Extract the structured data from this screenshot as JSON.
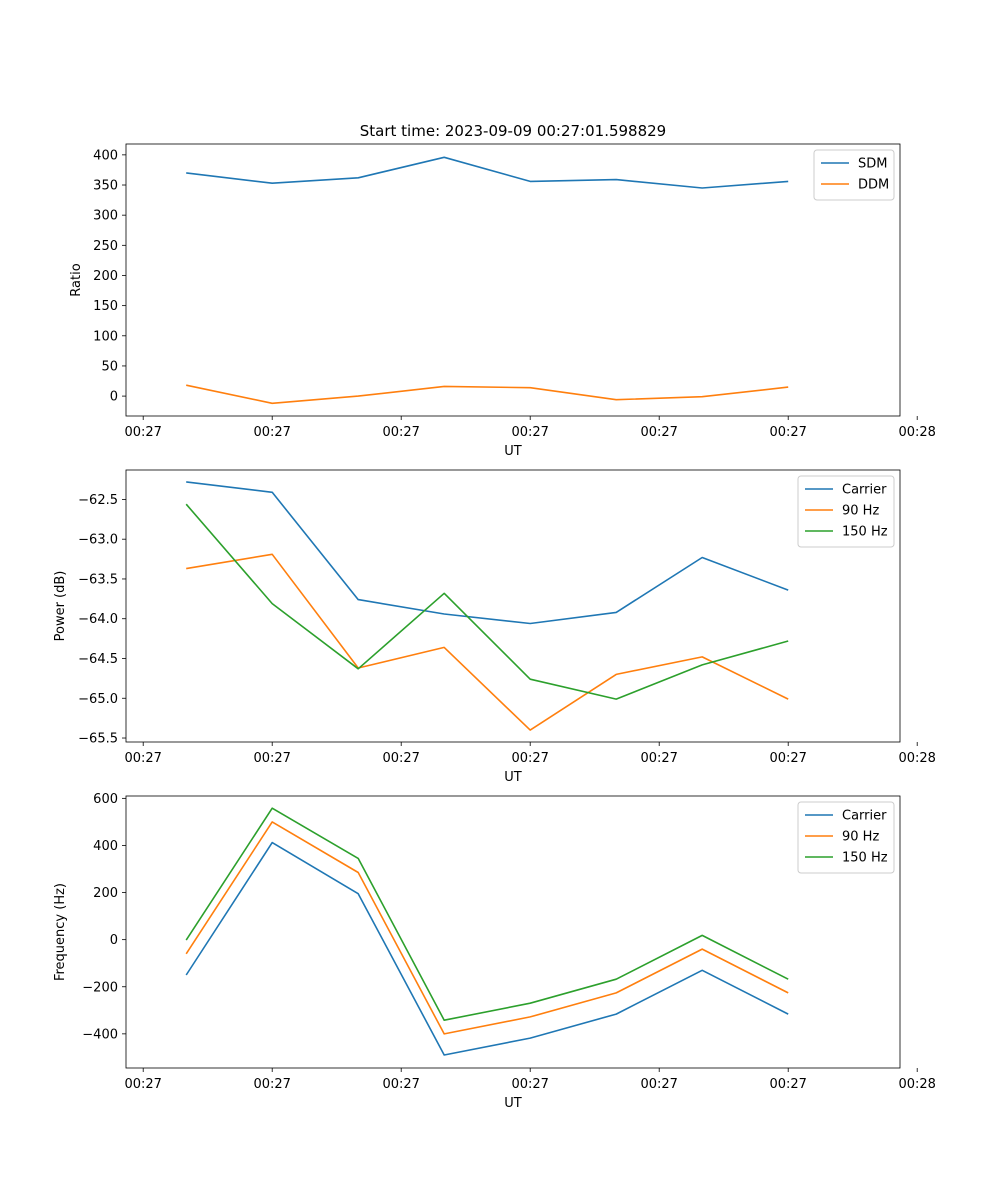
{
  "figure_title": "Start time: 2023-09-09 00:27:01.598829",
  "colors": {
    "blue": "#1f77b4",
    "orange": "#ff7f0e",
    "green": "#2ca02c"
  },
  "chart_data": [
    {
      "type": "line",
      "title": "Start time: 2023-09-09 00:27:01.598829",
      "xlabel": "UT",
      "ylabel": "Ratio",
      "x": [
        1,
        2,
        3,
        4,
        5,
        6,
        7,
        8
      ],
      "xlim": [
        0.3,
        9.3
      ],
      "x_ticks": [
        0.5,
        2,
        3.5,
        5,
        6.5,
        8,
        9.5
      ],
      "x_tick_labels": [
        "00:27",
        "00:27",
        "00:27",
        "00:27",
        "00:27",
        "00:27",
        "00:28"
      ],
      "ylim": [
        -33,
        418
      ],
      "y_ticks": [
        0,
        50,
        100,
        150,
        200,
        250,
        300,
        350,
        400
      ],
      "y_tick_labels": [
        "0",
        "50",
        "100",
        "150",
        "200",
        "250",
        "300",
        "350",
        "400"
      ],
      "legend_position": "top-right",
      "series": [
        {
          "name": "SDM",
          "color": "#1f77b4",
          "values": [
            370,
            353,
            362,
            396,
            356,
            359,
            345,
            356
          ]
        },
        {
          "name": "DDM",
          "color": "#ff7f0e",
          "values": [
            18,
            -12,
            0,
            16,
            14,
            -6,
            -1,
            15
          ]
        }
      ]
    },
    {
      "type": "line",
      "title": "",
      "xlabel": "UT",
      "ylabel": "Power (dB)",
      "x": [
        1,
        2,
        3,
        4,
        5,
        6,
        7,
        8
      ],
      "xlim": [
        0.3,
        9.3
      ],
      "x_ticks": [
        0.5,
        2,
        3.5,
        5,
        6.5,
        8,
        9.5
      ],
      "x_tick_labels": [
        "00:27",
        "00:27",
        "00:27",
        "00:27",
        "00:27",
        "00:27",
        "00:28"
      ],
      "ylim": [
        -65.55,
        -62.13
      ],
      "y_ticks": [
        -65.5,
        -65.0,
        -64.5,
        -64.0,
        -63.5,
        -63.0,
        -62.5
      ],
      "y_tick_labels": [
        "−65.5",
        "−65.0",
        "−64.5",
        "−64.0",
        "−63.5",
        "−63.0",
        "−62.5"
      ],
      "legend_position": "top-right",
      "series": [
        {
          "name": "Carrier",
          "color": "#1f77b4",
          "values": [
            -62.28,
            -62.41,
            -63.76,
            -63.94,
            -64.06,
            -63.92,
            -63.23,
            -63.64
          ]
        },
        {
          "name": "90 Hz",
          "color": "#ff7f0e",
          "values": [
            -63.37,
            -63.19,
            -64.62,
            -64.36,
            -65.4,
            -64.7,
            -64.48,
            -65.01
          ]
        },
        {
          "name": "150 Hz",
          "color": "#2ca02c",
          "values": [
            -62.56,
            -63.81,
            -64.63,
            -63.68,
            -64.76,
            -65.01,
            -64.58,
            -64.28
          ]
        }
      ]
    },
    {
      "type": "line",
      "title": "",
      "xlabel": "UT",
      "ylabel": "Frequency (Hz)",
      "x": [
        1,
        2,
        3,
        4,
        5,
        6,
        7,
        8
      ],
      "xlim": [
        0.3,
        9.3
      ],
      "x_ticks": [
        0.5,
        2,
        3.5,
        5,
        6.5,
        8,
        9.5
      ],
      "x_tick_labels": [
        "00:27",
        "00:27",
        "00:27",
        "00:27",
        "00:27",
        "00:27",
        "00:28"
      ],
      "ylim": [
        -545,
        610
      ],
      "y_ticks": [
        -400,
        -200,
        0,
        200,
        400,
        600
      ],
      "y_tick_labels": [
        "−400",
        "−200",
        "0",
        "200",
        "400",
        "600"
      ],
      "legend_position": "top-right",
      "series": [
        {
          "name": "Carrier",
          "color": "#1f77b4",
          "values": [
            -150,
            412,
            195,
            -490,
            -418,
            -316,
            -130,
            -316
          ]
        },
        {
          "name": "90 Hz",
          "color": "#ff7f0e",
          "values": [
            -60,
            500,
            285,
            -400,
            -328,
            -226,
            -40,
            -226
          ]
        },
        {
          "name": "150 Hz",
          "color": "#2ca02c",
          "values": [
            -2,
            558,
            345,
            -342,
            -270,
            -168,
            18,
            -168
          ]
        }
      ]
    }
  ]
}
